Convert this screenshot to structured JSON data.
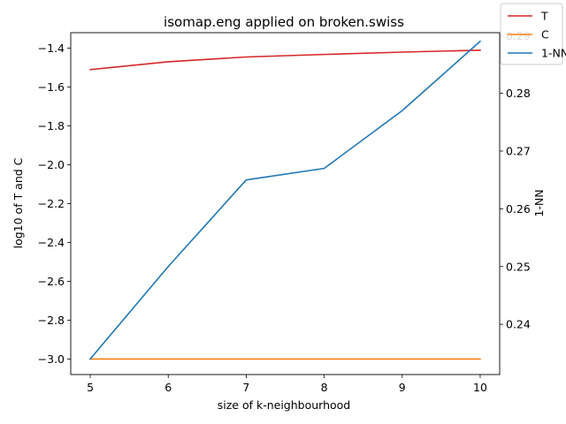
{
  "chart_data": {
    "type": "line",
    "title": "isomap.eng applied on broken.swiss",
    "xlabel": "size of k-neighbourhood",
    "ylabel_left": "log10 of T and C",
    "ylabel_right": "1-NN",
    "x": [
      5,
      6,
      7,
      8,
      9,
      10
    ],
    "xlim": [
      4.75,
      10.25
    ],
    "xticks": [
      "5",
      "6",
      "7",
      "8",
      "9",
      "10"
    ],
    "ylim_left": [
      -3.08,
      -1.32
    ],
    "yticks_left": [
      "−3.0",
      "−2.8",
      "−2.6",
      "−2.4",
      "−2.2",
      "−2.0",
      "−1.8",
      "−1.6",
      "−1.4"
    ],
    "ytick_values_left": [
      -3.0,
      -2.8,
      -2.6,
      -2.4,
      -2.2,
      -2.0,
      -1.8,
      -1.6,
      -1.4
    ],
    "ylim_right": [
      0.2313,
      0.2905
    ],
    "yticks_right": [
      "0.24",
      "0.25",
      "0.26",
      "0.27",
      "0.28",
      "0.29"
    ],
    "ytick_values_right": [
      0.24,
      0.25,
      0.26,
      0.27,
      0.28,
      0.29
    ],
    "series": [
      {
        "name": "T",
        "axis": "left",
        "color": "#d62728",
        "values": [
          -1.51,
          -1.47,
          -1.445,
          -1.432,
          -1.42,
          -1.41
        ]
      },
      {
        "name": "C",
        "axis": "left",
        "color": "#ff7f0e",
        "values": [
          -3.0,
          -3.0,
          -3.0,
          -3.0,
          -3.0,
          -3.0
        ]
      },
      {
        "name": "1-NN",
        "axis": "right",
        "color": "#1f77b4",
        "values": [
          0.234,
          0.25,
          0.265,
          0.267,
          0.277,
          0.289
        ]
      }
    ],
    "legend_position": "top-right",
    "grid": false
  }
}
